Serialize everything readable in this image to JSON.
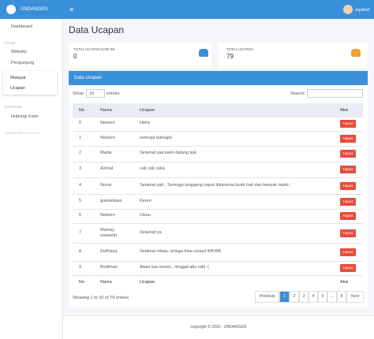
{
  "topbar": {
    "brand": "UNDANGEN",
    "user": "mydmd"
  },
  "sidebar": {
    "items": [
      "Dashboard"
    ],
    "section1": "FITUR",
    "fitur": [
      "Website",
      "Pengunjung"
    ],
    "submenu": [
      "Riwayat",
      "Ucapan"
    ],
    "section2": "BANTUAN",
    "bantuan": [
      "Hubungi Kami"
    ],
    "version": "UNDANGEN © Versi 1.0"
  },
  "page": {
    "title": "Data Ucapan"
  },
  "cards": [
    {
      "label": "TOTAL UCAPAN HARI INI",
      "value": "0"
    },
    {
      "label": "TOTAL UCAPAN",
      "value": "79"
    }
  ],
  "panel": {
    "title": "Data Ucapan",
    "show": "Show",
    "length": "10",
    "entries": "entries",
    "search": "Search:"
  },
  "table": {
    "headers": [
      "No",
      "Nama",
      "Ucapan",
      "Aksi"
    ],
    "rows": [
      [
        "0",
        "Netizen",
        "Hehe"
      ],
      [
        "1",
        "Netizen",
        "semoga bahagia"
      ],
      [
        "2",
        "Marta",
        "Selamat yaa kami datang kok"
      ],
      [
        "3",
        "AXmal",
        "cek cek ceka"
      ],
      [
        "4",
        "Novia",
        "Selamat yah , Semoga langgeng cepat dikaruniai buah hati dan banyak rejeki.."
      ],
      [
        "5",
        "guetampan",
        "Keren"
      ],
      [
        "6",
        "Netizen",
        "Uwuu"
      ],
      [
        "7",
        "Mamay somantri",
        "Selamat ya"
      ],
      [
        "8",
        "Dofhisya",
        "Selamat mbaa, smoga bisa nyusul WKWK"
      ],
      [
        "9",
        "Budiman",
        "Awas kau bosss.. ninggal aku rabi :("
      ]
    ],
    "action": "Hapus",
    "footers": [
      "No",
      "Nama",
      "Ucapan",
      "Aksi"
    ]
  },
  "info": "Showing 1 to 10 of 79 entries",
  "pagination": [
    "Previous",
    "1",
    "2",
    "3",
    "4",
    "5",
    "…",
    "8",
    "Next"
  ],
  "footer": "copyright © 2020 - UNDANGEN"
}
